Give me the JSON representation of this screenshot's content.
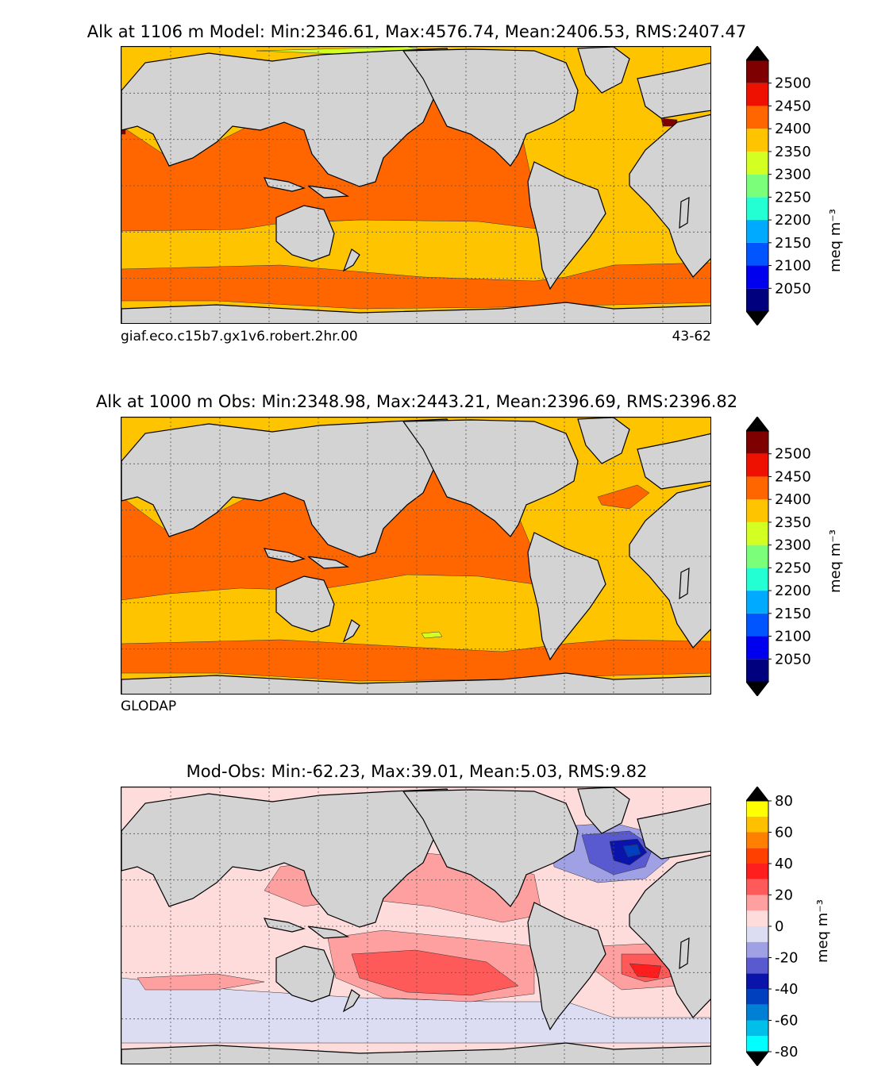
{
  "panels": [
    {
      "title": "Alk at 1106 m Model: Min:2346.61, Max:4576.74, Mean:2406.53, RMS:2407.47",
      "footer_left": "giaf.eco.c15b7.gx1v6.robert.2hr.00",
      "footer_right": "43-62",
      "colorbar_label": "meq m⁻³"
    },
    {
      "title": "Alk at 1000 m Obs: Min:2348.98, Max:2443.21, Mean:2396.69, RMS:2396.82",
      "footer_left": "GLODAP",
      "footer_right": "",
      "colorbar_label": "meq m⁻³"
    },
    {
      "title": "Mod-Obs: Min:-62.23, Max:39.01, Mean:5.03, RMS:9.82",
      "footer_left": "",
      "footer_right": "",
      "colorbar_label": "meq m⁻³"
    }
  ],
  "chart_data": [
    {
      "type": "heatmap",
      "title": "Alk at 1106 m Model: Min:2346.61, Max:4576.74, Mean:2406.53, RMS:2407.47",
      "statistics": {
        "min": 2346.61,
        "max": 4576.74,
        "mean": 2406.53,
        "rms": 2407.47
      },
      "depth": "1106 m",
      "colorbar": {
        "ticks": [
          2050,
          2100,
          2150,
          2200,
          2250,
          2300,
          2350,
          2400,
          2450,
          2500
        ],
        "colors": [
          "#00007f",
          "#0000ee",
          "#0055ff",
          "#00aaff",
          "#23ffd3",
          "#7bff7b",
          "#d3ff23",
          "#ffc400",
          "#ff6600",
          "#ee1000",
          "#7f0000"
        ],
        "extend": "both",
        "unit": "meq m⁻³"
      },
      "grid": true
    },
    {
      "type": "heatmap",
      "title": "Alk at 1000 m Obs: Min:2348.98, Max:2443.21, Mean:2396.69, RMS:2396.82",
      "statistics": {
        "min": 2348.98,
        "max": 2443.21,
        "mean": 2396.69,
        "rms": 2396.82
      },
      "depth": "1000 m",
      "colorbar": {
        "ticks": [
          2050,
          2100,
          2150,
          2200,
          2250,
          2300,
          2350,
          2400,
          2450,
          2500
        ],
        "colors": [
          "#00007f",
          "#0000ee",
          "#0055ff",
          "#00aaff",
          "#23ffd3",
          "#7bff7b",
          "#d3ff23",
          "#ffc400",
          "#ff6600",
          "#ee1000",
          "#7f0000"
        ],
        "extend": "both",
        "unit": "meq m⁻³"
      },
      "grid": true
    },
    {
      "type": "heatmap",
      "title": "Mod-Obs: Min:-62.23, Max:39.01, Mean:5.03, RMS:9.82",
      "statistics": {
        "min": -62.23,
        "max": 39.01,
        "mean": 5.03,
        "rms": 9.82
      },
      "colorbar": {
        "ticks": [
          -80,
          -60,
          -40,
          -20,
          0,
          20,
          40,
          60,
          80
        ],
        "colors": [
          "#00ffff",
          "#00c0ea",
          "#0080d5",
          "#0040bf",
          "#0a14aa",
          "#5a5ad0",
          "#a0a0e4",
          "#dcdcf2",
          "#ffdcdc",
          "#ffa0a0",
          "#ff5a5a",
          "#ff1e1e",
          "#ff4000",
          "#ff8000",
          "#ffc000",
          "#ffff00"
        ],
        "extend": "both",
        "unit": "meq m⁻³"
      },
      "grid": true
    }
  ],
  "colors": {
    "land": "#d3d3d3",
    "missing": "#ffffff",
    "grid": "#555555"
  }
}
